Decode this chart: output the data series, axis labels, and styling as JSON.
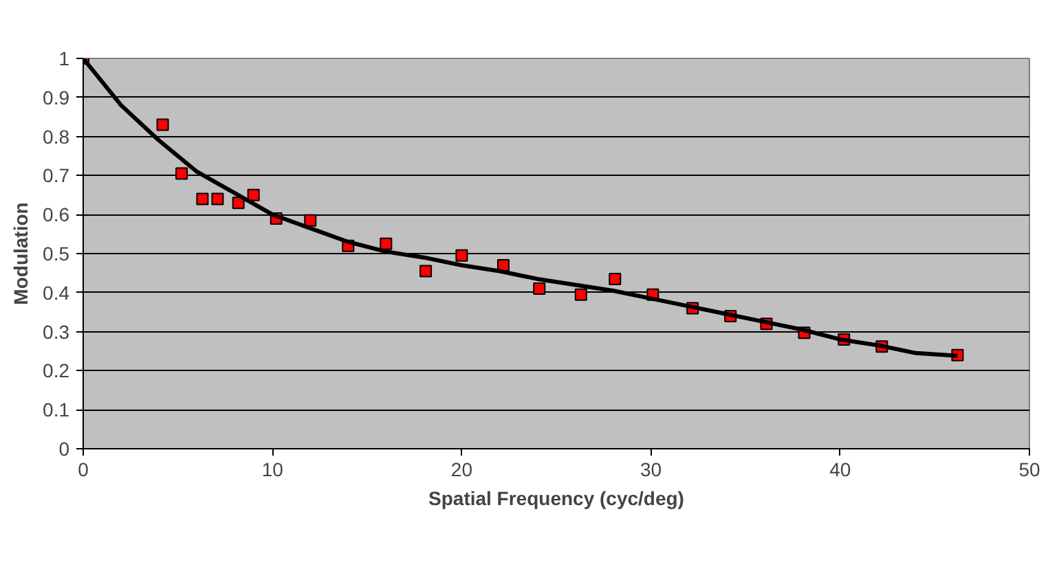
{
  "chart_data": {
    "type": "scatter",
    "xlabel": "Spatial Frequency (cyc/deg)",
    "ylabel": "Modulation",
    "xlim": [
      0,
      50
    ],
    "xticks": [
      0,
      10,
      20,
      30,
      40,
      50
    ],
    "ylim": [
      0,
      1
    ],
    "yticks": [
      0,
      0.1,
      0.2,
      0.3,
      0.4,
      0.5,
      0.6,
      0.7,
      0.8,
      0.9,
      1
    ],
    "grid": "y",
    "series": [
      {
        "marker": "square",
        "color": "#ff0000",
        "x": [
          0,
          4.2,
          5.2,
          6.3,
          7.1,
          8.2,
          9,
          10.2,
          12,
          14,
          16,
          18.1,
          20,
          22.2,
          24.1,
          26.3,
          28.1,
          30.1,
          32.2,
          34.2,
          36.1,
          38.1,
          40.2,
          42.2,
          46.2
        ],
        "values": [
          1,
          0.83,
          0.705,
          0.64,
          0.64,
          0.63,
          0.65,
          0.59,
          0.585,
          0.52,
          0.525,
          0.455,
          0.495,
          0.47,
          0.41,
          0.395,
          0.435,
          0.395,
          0.36,
          0.34,
          0.32,
          0.297,
          0.28,
          0.262,
          0.24
        ]
      },
      {
        "type": "line",
        "marker": "none",
        "color": "#000000",
        "x": [
          0,
          2,
          4,
          6,
          8,
          10,
          12,
          14,
          16,
          18,
          20,
          22,
          24,
          26,
          28,
          30,
          32,
          34,
          36,
          38,
          40,
          42,
          44,
          46.2
        ],
        "values": [
          1,
          0.88,
          0.79,
          0.71,
          0.655,
          0.6,
          0.565,
          0.53,
          0.505,
          0.49,
          0.47,
          0.455,
          0.435,
          0.42,
          0.405,
          0.385,
          0.365,
          0.345,
          0.325,
          0.305,
          0.28,
          0.265,
          0.245,
          0.238
        ]
      }
    ]
  }
}
